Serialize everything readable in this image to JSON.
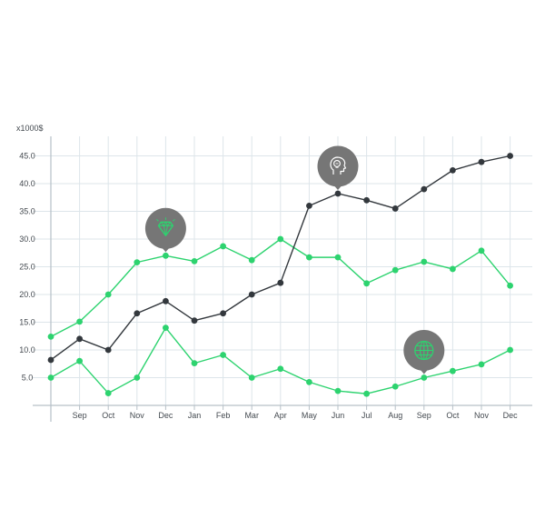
{
  "chart_data": {
    "type": "line",
    "unit_label": "x1000$",
    "categories": [
      "",
      "Sep",
      "Oct",
      "Nov",
      "Dec",
      "Jan",
      "Feb",
      "Mar",
      "Apr",
      "May",
      "Jun",
      "Jul",
      "Aug",
      "Sep",
      "Oct",
      "Nov",
      "Dec"
    ],
    "yticks": [
      5.0,
      10.0,
      15.0,
      20.0,
      25.0,
      30.0,
      35.0,
      40.0,
      45.0
    ],
    "ytick_labels": [
      "5.0",
      "10.0",
      "15.0",
      "20.0",
      "25.0",
      "30.0",
      "35.0",
      "40.0",
      "45.0"
    ],
    "ylim": [
      0,
      48
    ],
    "grid": true,
    "series": [
      {
        "color": "#2dd36f",
        "values": [
          12.4,
          15.1,
          20.0,
          25.8,
          27.0,
          26.0,
          28.7,
          26.2,
          30.0,
          26.7,
          26.7,
          22.0,
          24.4,
          25.9,
          24.6,
          27.9,
          21.6
        ]
      },
      {
        "color": "#33383d",
        "values": [
          8.2,
          12.0,
          10.0,
          16.6,
          18.8,
          15.3,
          16.6,
          20.0,
          22.1,
          36.0,
          38.2,
          37.0,
          35.5,
          39.0,
          42.4,
          43.9,
          45.0
        ]
      },
      {
        "color": "#2dd36f",
        "values": [
          5.0,
          8.0,
          2.2,
          5.0,
          14.0,
          7.6,
          9.1,
          5.0,
          6.6,
          4.2,
          2.6,
          2.1,
          3.4,
          5.0,
          6.2,
          7.4,
          10.0
        ]
      }
    ],
    "markers": [
      {
        "icon": "diamond-icon",
        "index": 4,
        "value": 27.0
      },
      {
        "icon": "head-idea-icon",
        "index": 10,
        "value": 38.2
      },
      {
        "icon": "globe-icon",
        "index": 13,
        "value": 5.0
      }
    ],
    "colors": {
      "accent": "#2dd36f",
      "dark": "#33383d",
      "marker_bg": "#767676",
      "grid": "#dde5ea",
      "axis": "#b6c0c7"
    }
  }
}
